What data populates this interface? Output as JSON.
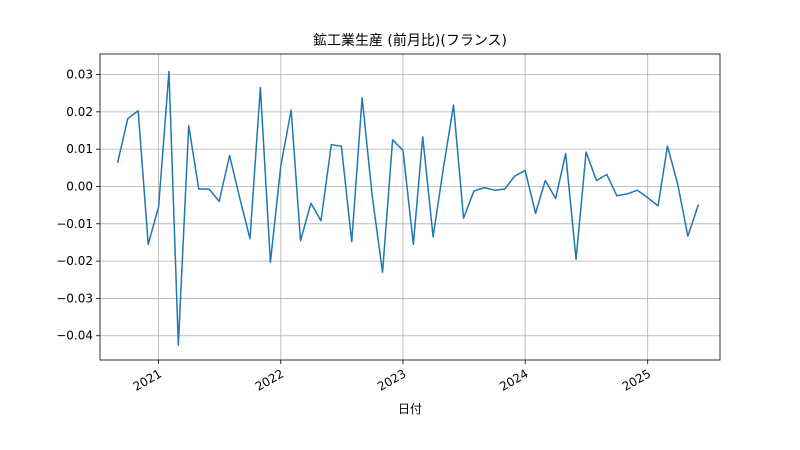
{
  "chart_data": {
    "type": "line",
    "title": "鉱工業生産 (前月比)(フランス)",
    "xlabel": "日付",
    "ylabel": "",
    "x": [
      "2020-09",
      "2020-10",
      "2020-11",
      "2020-12",
      "2021-01",
      "2021-02",
      "2021-03",
      "2021-04",
      "2021-05",
      "2021-06",
      "2021-07",
      "2021-08",
      "2021-09",
      "2021-10",
      "2021-11",
      "2021-12",
      "2022-01",
      "2022-02",
      "2022-03",
      "2022-04",
      "2022-05",
      "2022-06",
      "2022-07",
      "2022-08",
      "2022-09",
      "2022-10",
      "2022-11",
      "2022-12",
      "2023-01",
      "2023-02",
      "2023-03",
      "2023-04",
      "2023-05",
      "2023-06",
      "2023-07",
      "2023-08",
      "2023-09",
      "2023-10",
      "2023-11",
      "2023-12",
      "2024-01",
      "2024-02",
      "2024-03",
      "2024-04",
      "2024-05",
      "2024-06",
      "2024-07",
      "2024-08",
      "2024-09",
      "2024-10",
      "2024-11",
      "2024-12",
      "2025-01",
      "2025-02",
      "2025-03",
      "2025-04",
      "2025-05",
      "2025-06"
    ],
    "series": [
      {
        "color": "#1f77b4",
        "values": [
          0.0065,
          0.0182,
          0.0203,
          -0.0155,
          -0.0055,
          0.0308,
          -0.0425,
          0.0163,
          -0.0007,
          -0.0007,
          -0.004,
          0.0083,
          -0.0033,
          -0.014,
          0.0265,
          -0.0203,
          0.0055,
          0.0205,
          -0.0145,
          -0.0045,
          -0.0092,
          0.0112,
          0.0108,
          -0.0148,
          0.0238,
          -0.0025,
          -0.023,
          0.0125,
          0.0097,
          -0.0155,
          0.0133,
          -0.0135,
          0.0045,
          0.0218,
          -0.0085,
          -0.0012,
          -0.0003,
          -0.001,
          -0.0007,
          0.0028,
          0.0043,
          -0.0072,
          0.0016,
          -0.0032,
          0.0088,
          -0.0195,
          0.0092,
          0.0016,
          0.0032,
          -0.0025,
          -0.002,
          -0.001,
          -0.003,
          -0.0052,
          0.0108,
          0.0005,
          -0.0133,
          -0.005
        ]
      }
    ],
    "x_ticks": [
      "2021",
      "2022",
      "2023",
      "2024",
      "2025"
    ],
    "y_ticks": [
      0.03,
      0.02,
      0.01,
      0.0,
      -0.01,
      -0.02,
      -0.03,
      -0.04
    ],
    "y_tick_labels": [
      "0.03",
      "0.02",
      "0.01",
      "0.00",
      "−0.01",
      "−0.02",
      "−0.03",
      "−0.04"
    ],
    "ylim": [
      -0.0465,
      0.0355
    ],
    "xlim": [
      "2020-07-10",
      "2025-08-05"
    ],
    "grid": true
  }
}
